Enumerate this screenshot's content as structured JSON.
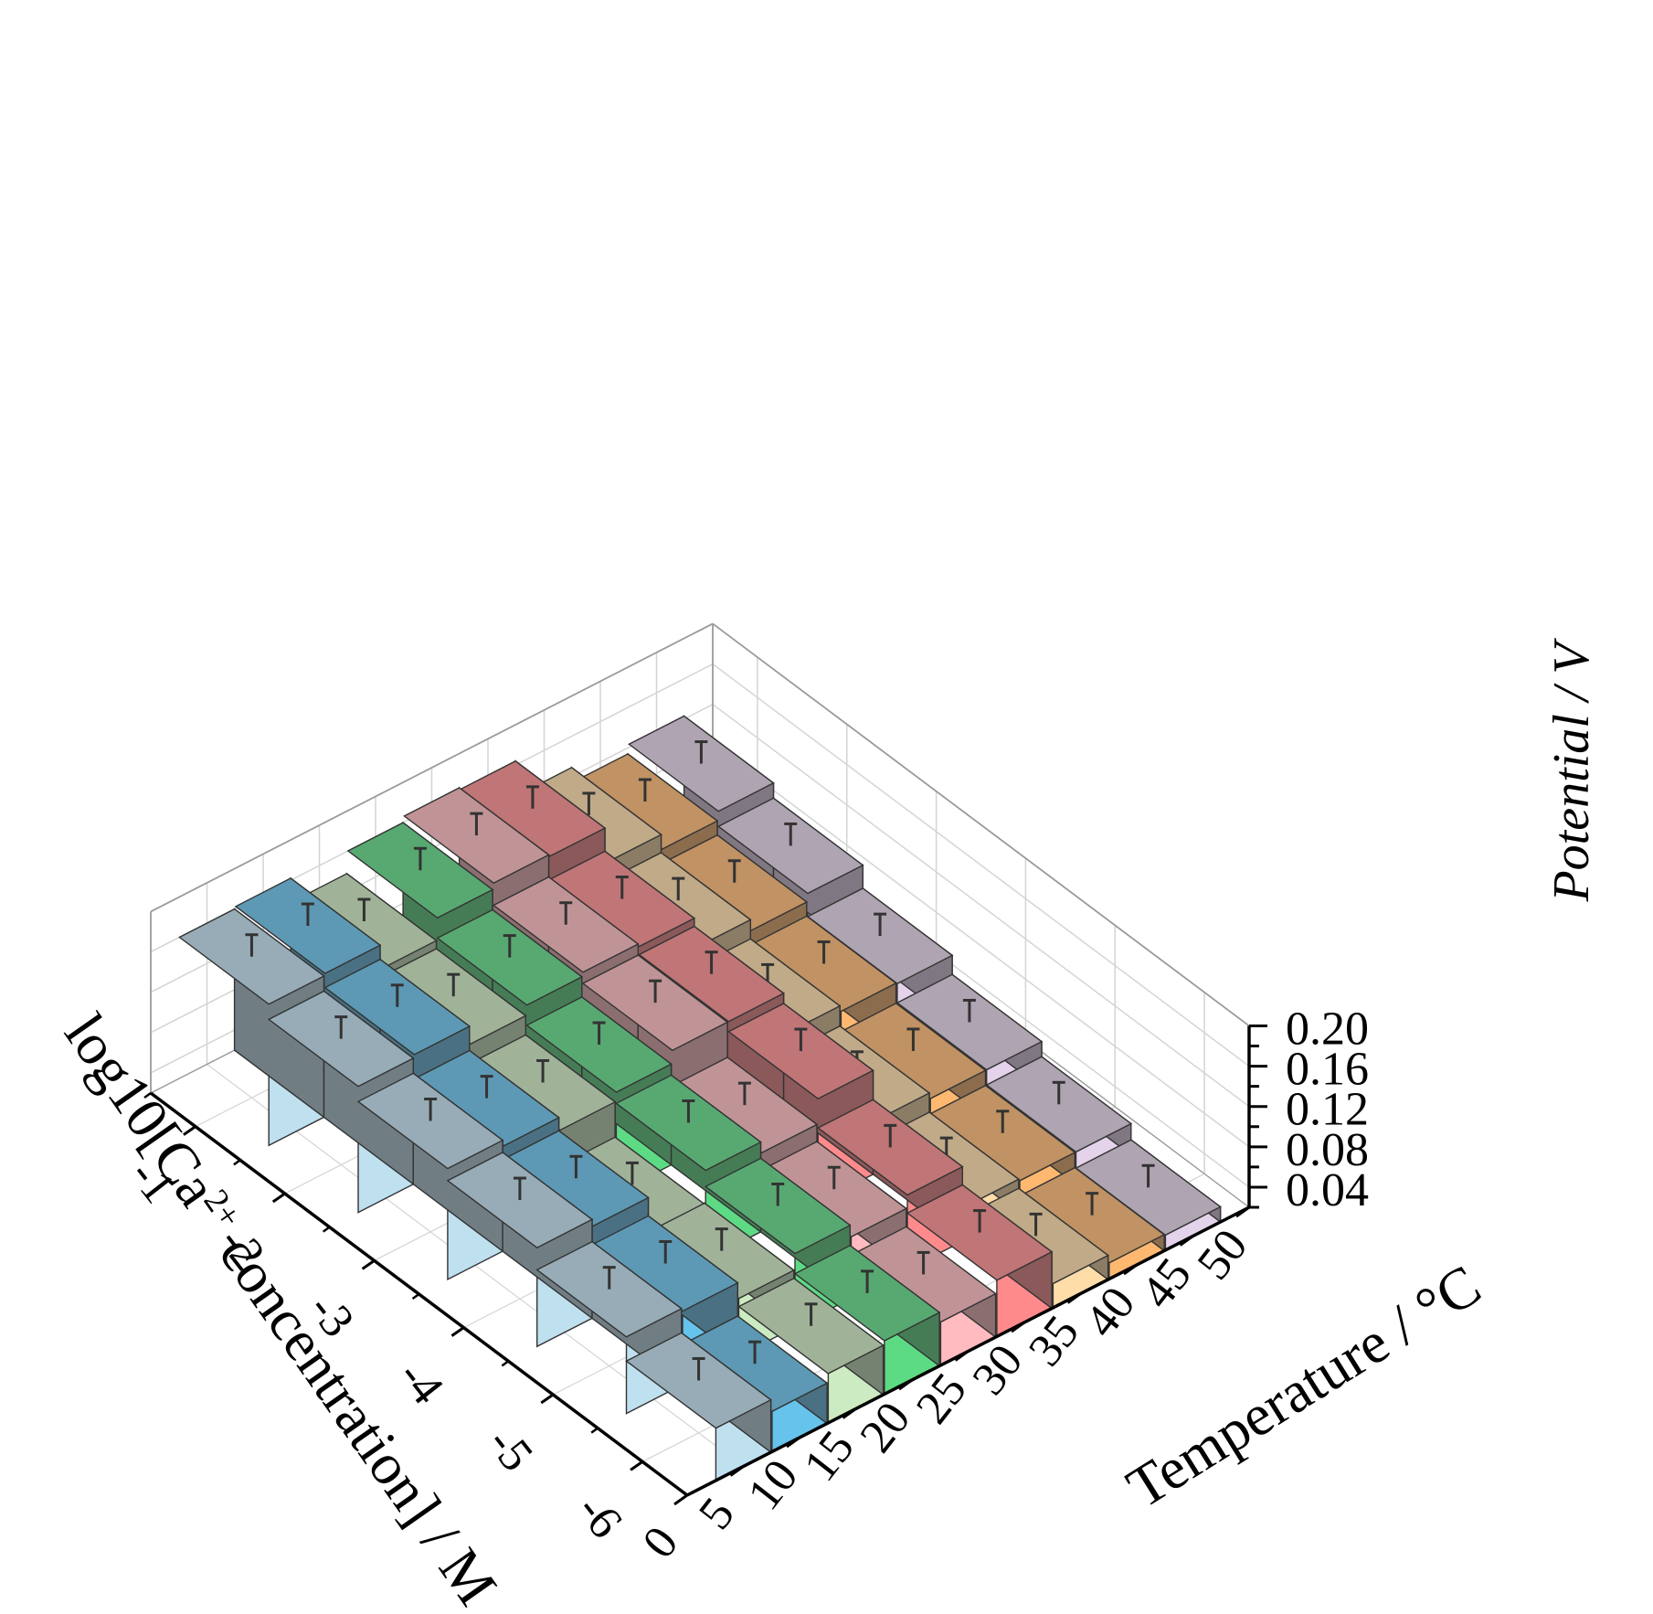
{
  "chart_data": {
    "type": "bar3d",
    "xlabel_parts": [
      "log10[Ca",
      "2+",
      " concentration] / M"
    ],
    "ylabel": "Temperature / °C",
    "zlabel": "Potential / V",
    "x_categories": [
      "-1",
      "-2",
      "-3",
      "-4",
      "-5",
      "-6"
    ],
    "y_tick_labels": [
      "0",
      "5",
      "10",
      "15",
      "20",
      "25",
      "30",
      "35",
      "40",
      "45",
      "50"
    ],
    "z_tick_labels": [
      "0.04",
      "0.08",
      "0.12",
      "0.16",
      "0.20"
    ],
    "zlim": [
      0.02,
      0.2
    ],
    "grid": true,
    "series": [
      {
        "temperature": 5,
        "color": "#bfe0ef",
        "values": [
          0.16,
          0.145,
          0.13,
          0.118,
          0.096,
          0.072
        ]
      },
      {
        "temperature": 10,
        "color": "#65c3ec",
        "values": [
          0.162,
          0.148,
          0.124,
          0.111,
          0.093,
          0.06
        ]
      },
      {
        "temperature": 15,
        "color": "#cdebc2",
        "values": [
          0.138,
          0.13,
          0.111,
          0.076,
          0.077,
          0.069
        ]
      },
      {
        "temperature": 20,
        "color": "#5ddb84",
        "values": [
          0.16,
          0.14,
          0.12,
          0.109,
          0.093,
          0.073
        ]
      },
      {
        "temperature": 25,
        "color": "#ffbbbf",
        "values": [
          0.166,
          0.144,
          0.133,
          0.098,
          0.081,
          0.063
        ]
      },
      {
        "temperature": 30,
        "color": "#ff8a8c",
        "values": [
          0.164,
          0.141,
          0.133,
          0.123,
          0.094,
          0.076
        ]
      },
      {
        "temperature": 35,
        "color": "#ffdda8",
        "values": [
          0.129,
          0.111,
          0.092,
          0.072,
          0.053,
          0.044
        ]
      },
      {
        "temperature": 40,
        "color": "#ffb870",
        "values": [
          0.114,
          0.1,
          0.086,
          0.066,
          0.051,
          0.036
        ]
      },
      {
        "temperature": 45,
        "color": "#e4d3ea",
        "values": [
          0.123,
          0.108,
          0.085,
          0.066,
          0.051,
          0.035
        ]
      }
    ]
  }
}
